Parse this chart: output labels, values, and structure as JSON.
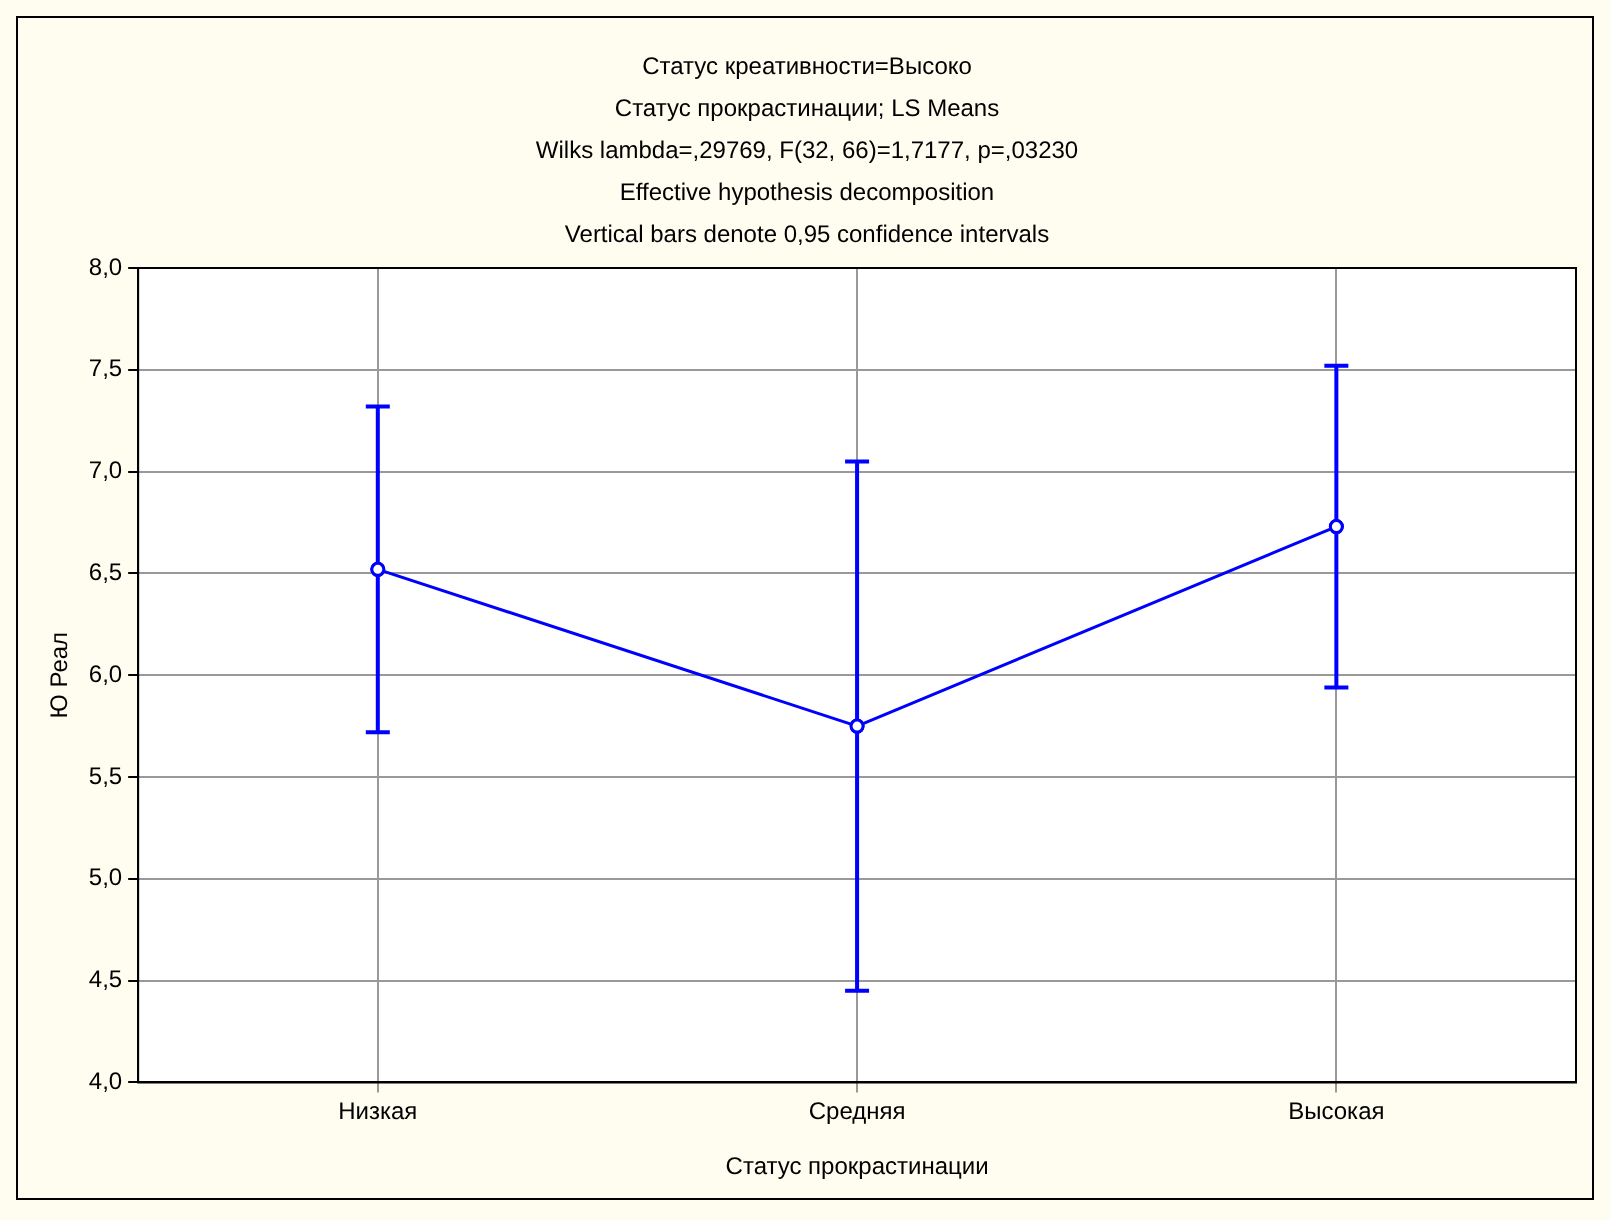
{
  "chart_data": {
    "type": "line",
    "title": "Статус креативности=Высоко",
    "subtitle": "Статус прокрастинации; LS Means",
    "annotations": [
      "Wilks lambda=,29769, F(32, 66)=1,7177, p=,03230",
      "Effective hypothesis decomposition",
      "Vertical bars denote 0,95 confidence intervals"
    ],
    "xlabel": "Статус прокрастинации",
    "ylabel": "Ю Реал",
    "categories": [
      "Низкая",
      "Средняя",
      "Высокая"
    ],
    "series": [
      {
        "color": "#0000ff",
        "values": [
          6.52,
          5.75,
          6.73
        ],
        "errors": [
          [
            5.72,
            7.32
          ],
          [
            4.45,
            7.05
          ],
          [
            5.94,
            7.52
          ]
        ]
      }
    ],
    "ylim": [
      4,
      8
    ],
    "yticks": [
      {
        "value": 4,
        "label": "4,0"
      },
      {
        "value": 4.5,
        "label": "4,5"
      },
      {
        "value": 5,
        "label": "5,0"
      },
      {
        "value": 5.5,
        "label": "5,5"
      },
      {
        "value": 6,
        "label": "6,0"
      },
      {
        "value": 6.5,
        "label": "6,5"
      },
      {
        "value": 7,
        "label": "7,0"
      },
      {
        "value": 7.5,
        "label": "7,5"
      },
      {
        "value": 8,
        "label": "8,0"
      }
    ],
    "grid": true,
    "marker": "circle",
    "line_style": "solid",
    "legend": false
  }
}
